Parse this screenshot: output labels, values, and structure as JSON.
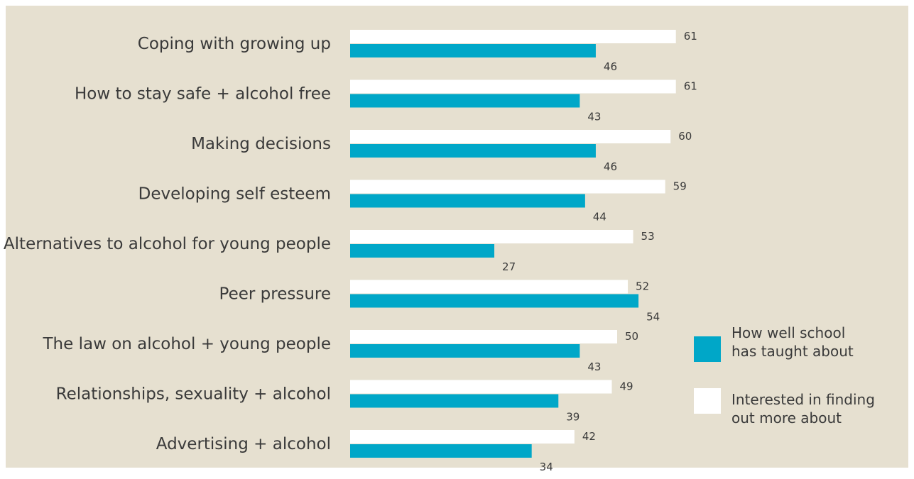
{
  "chart_data": {
    "type": "bar",
    "orientation": "horizontal",
    "categories": [
      "Coping with growing up",
      "How to stay safe + alcohol free",
      "Making decisions",
      "Developing self esteem",
      "Alternatives to alcohol for young people",
      "Peer pressure",
      "The law on alcohol + young people",
      "Relationships, sexuality + alcohol",
      "Advertising + alcohol"
    ],
    "series": [
      {
        "name": "Interested in finding out more about",
        "color": "#ffffff",
        "values": [
          61,
          61,
          60,
          59,
          53,
          52,
          50,
          49,
          42
        ]
      },
      {
        "name": "How well school has taught about",
        "color": "#00a7c8",
        "values": [
          46,
          43,
          46,
          44,
          27,
          54,
          43,
          39,
          34
        ]
      }
    ],
    "legend": {
      "placement": "right",
      "items": [
        {
          "label_lines": [
            "How well school",
            "has taught about"
          ],
          "color": "#00a7c8"
        },
        {
          "label_lines": [
            "Interested in finding",
            "out more about"
          ],
          "color": "#ffffff"
        }
      ]
    },
    "xlim": [
      0,
      70
    ],
    "grid": false,
    "background": "#e6e0d0"
  }
}
